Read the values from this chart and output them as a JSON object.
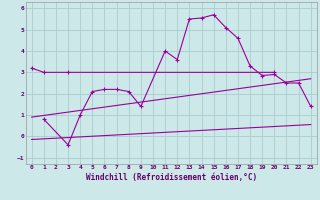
{
  "xlabel": "Windchill (Refroidissement éolien,°C)",
  "background_color": "#cce8e8",
  "grid_color": "#aacccc",
  "line_color": "#990099",
  "xlim": [
    -0.5,
    23.5
  ],
  "ylim": [
    -1.3,
    6.3
  ],
  "yticks": [
    -1,
    0,
    1,
    2,
    3,
    4,
    5,
    6
  ],
  "xticks": [
    0,
    1,
    2,
    3,
    4,
    5,
    6,
    7,
    8,
    9,
    10,
    11,
    12,
    13,
    14,
    15,
    16,
    17,
    18,
    19,
    20,
    21,
    22,
    23
  ],
  "series": [
    {
      "x": [
        0,
        1,
        3,
        20
      ],
      "y": [
        3.2,
        3.0,
        3.0,
        3.0
      ],
      "marker": "+"
    },
    {
      "x": [
        1,
        3,
        4,
        5,
        6,
        7,
        8,
        9,
        11,
        12,
        13,
        14,
        15,
        16,
        17,
        18,
        19,
        20,
        21,
        22,
        23
      ],
      "y": [
        0.8,
        -0.4,
        1.0,
        2.1,
        2.2,
        2.2,
        2.1,
        1.4,
        4.0,
        3.6,
        5.5,
        5.55,
        5.7,
        5.1,
        4.6,
        3.3,
        2.85,
        2.9,
        2.5,
        2.5,
        1.4
      ],
      "marker": "+"
    },
    {
      "x": [
        0,
        23
      ],
      "y": [
        0.9,
        2.7
      ],
      "marker": null
    },
    {
      "x": [
        0,
        23
      ],
      "y": [
        -0.15,
        0.55
      ],
      "marker": null
    }
  ]
}
